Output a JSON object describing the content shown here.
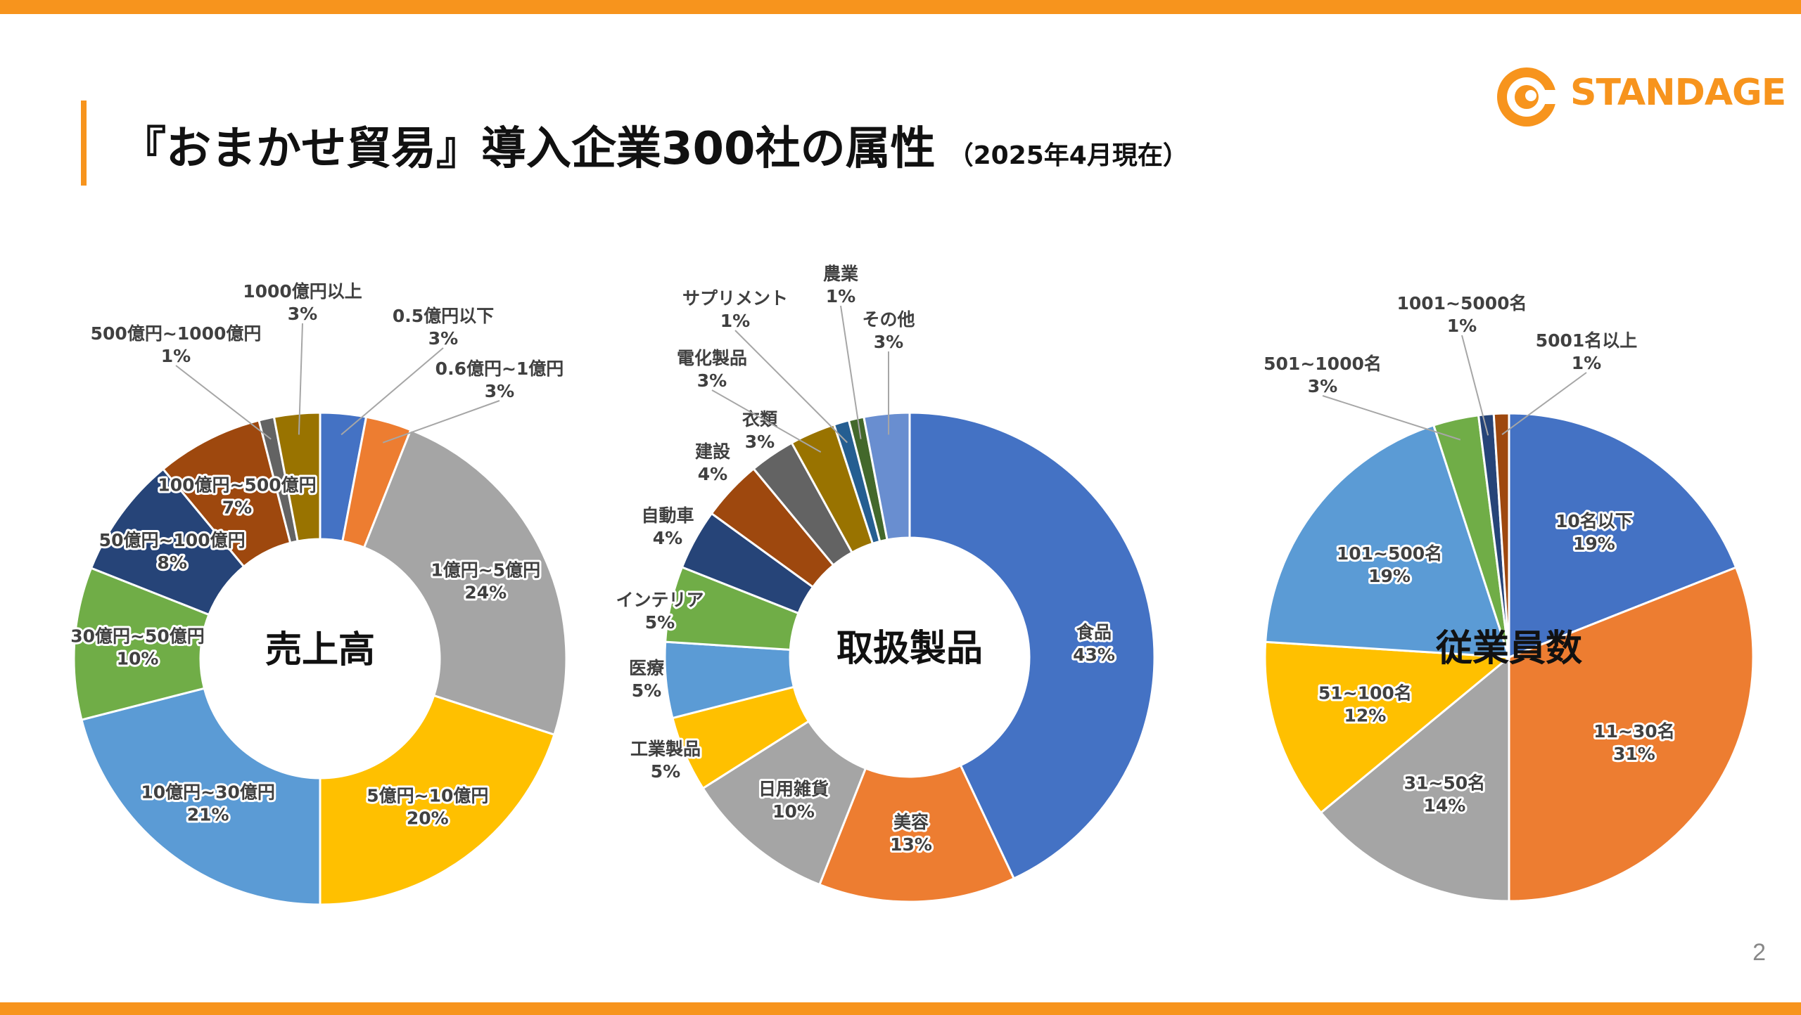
{
  "header": {
    "title": "『おまかせ貿易』導入企業300社の属性",
    "subtitle": "（2025年4月現在）",
    "logo_text": "STANDAGE",
    "logo_icon": "standage-c-logo"
  },
  "page_number": "2",
  "colors": {
    "accent": "#f7941d",
    "blue": "#4472c4",
    "orange": "#ed7d31",
    "gray": "#a5a5a5",
    "gold": "#ffc000",
    "light_blue": "#5b9bd5",
    "green": "#70ad47",
    "navy": "#264478",
    "brown": "#9e480e",
    "dark_gray": "#636363",
    "olive": "#997300"
  },
  "chart_data": [
    {
      "type": "pie",
      "variant": "donut",
      "title": "売上高",
      "slices": [
        {
          "label": "0.5億円以下",
          "value": 3,
          "display": "3%",
          "color": "#4472c4"
        },
        {
          "label": "0.6億円~1億円",
          "value": 3,
          "display": "3%",
          "color": "#ed7d31"
        },
        {
          "label": "1億円~5億円",
          "value": 24,
          "display": "24%",
          "color": "#a5a5a5"
        },
        {
          "label": "5億円~10億円",
          "value": 20,
          "display": "20%",
          "color": "#ffc000"
        },
        {
          "label": "10億円~30億円",
          "value": 21,
          "display": "21%",
          "color": "#5b9bd5"
        },
        {
          "label": "30億円~50億円",
          "value": 10,
          "display": "10%",
          "color": "#70ad47"
        },
        {
          "label": "50億円~100億円",
          "value": 8,
          "display": "8%",
          "color": "#264478"
        },
        {
          "label": "100億円~500億円",
          "value": 7,
          "display": "7%",
          "color": "#9e480e"
        },
        {
          "label": "500億円~1000億円",
          "value": 1,
          "display": "1%",
          "color": "#636363"
        },
        {
          "label": "1000億円以上",
          "value": 3,
          "display": "3%",
          "color": "#997300"
        }
      ]
    },
    {
      "type": "pie",
      "variant": "donut",
      "title": "取扱製品",
      "slices": [
        {
          "label": "食品",
          "value": 43,
          "display": "43%",
          "color": "#4472c4"
        },
        {
          "label": "美容",
          "value": 13,
          "display": "13%",
          "color": "#ed7d31"
        },
        {
          "label": "日用雑貨",
          "value": 10,
          "display": "10%",
          "color": "#a5a5a5"
        },
        {
          "label": "工業製品",
          "value": 5,
          "display": "5%",
          "color": "#ffc000"
        },
        {
          "label": "医療",
          "value": 5,
          "display": "5%",
          "color": "#5b9bd5"
        },
        {
          "label": "インテリア",
          "value": 5,
          "display": "5%",
          "color": "#70ad47"
        },
        {
          "label": "自動車",
          "value": 4,
          "display": "4%",
          "color": "#264478"
        },
        {
          "label": "建設",
          "value": 4,
          "display": "4%",
          "color": "#9e480e"
        },
        {
          "label": "衣類",
          "value": 3,
          "display": "3%",
          "color": "#636363"
        },
        {
          "label": "電化製品",
          "value": 3,
          "display": "3%",
          "color": "#997300"
        },
        {
          "label": "サプリメント",
          "value": 1,
          "display": "1%",
          "color": "#255e91"
        },
        {
          "label": "農業",
          "value": 1,
          "display": "1%",
          "color": "#43682b"
        },
        {
          "label": "その他",
          "value": 3,
          "display": "3%",
          "color": "#698ed0"
        }
      ]
    },
    {
      "type": "pie",
      "variant": "pie",
      "title": "従業員数",
      "slices": [
        {
          "label": "10名以下",
          "value": 19,
          "display": "19%",
          "color": "#4472c4"
        },
        {
          "label": "11~30名",
          "value": 31,
          "display": "31%",
          "color": "#ed7d31"
        },
        {
          "label": "31~50名",
          "value": 14,
          "display": "14%",
          "color": "#a5a5a5"
        },
        {
          "label": "51~100名",
          "value": 12,
          "display": "12%",
          "color": "#ffc000"
        },
        {
          "label": "101~500名",
          "value": 19,
          "display": "19%",
          "color": "#5b9bd5"
        },
        {
          "label": "501~1000名",
          "value": 3,
          "display": "3%",
          "color": "#70ad47"
        },
        {
          "label": "1001~5000名",
          "value": 1,
          "display": "1%",
          "color": "#264478"
        },
        {
          "label": "5001名以上",
          "value": 1,
          "display": "1%",
          "color": "#9e480e"
        }
      ]
    }
  ]
}
